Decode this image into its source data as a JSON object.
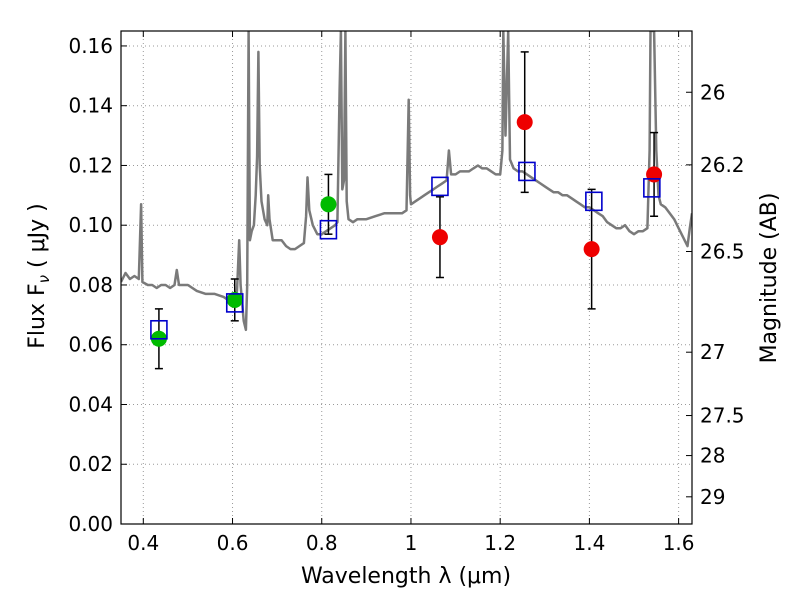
{
  "chart_data": {
    "type": "scatter",
    "xlabel": "Wavelength  λ (μm)",
    "ylabel": "Flux  F",
    "ylabel_sub": "ν",
    "ylabel_unit": "  ( μJy )",
    "ylabel_right": "Magnitude (AB)",
    "xlim": [
      0.35,
      1.63
    ],
    "ylim": [
      0.0,
      0.165
    ],
    "grid": true,
    "x_ticks": [
      0.4,
      0.6,
      0.8,
      1.0,
      1.2,
      1.4,
      1.6
    ],
    "x_tick_labels": [
      "0.4",
      "0.6",
      "0.8",
      "1",
      "1.2",
      "1.4",
      "1.6"
    ],
    "y_ticks": [
      0.0,
      0.02,
      0.04,
      0.06,
      0.08,
      0.1,
      0.12,
      0.14,
      0.16
    ],
    "y_tick_labels": [
      "0.00",
      "0.02",
      "0.04",
      "0.06",
      "0.08",
      "0.10",
      "0.12",
      "0.14",
      "0.16"
    ],
    "right_ticks": [
      {
        "label": "26",
        "flux": 0.1445
      },
      {
        "label": "26.2",
        "flux": 0.1202
      },
      {
        "label": "26.5",
        "flux": 0.0912
      },
      {
        "label": "27",
        "flux": 0.0575
      },
      {
        "label": "27.5",
        "flux": 0.0363
      },
      {
        "label": "28",
        "flux": 0.0229
      },
      {
        "label": "29",
        "flux": 0.0091
      }
    ],
    "colors": {
      "model": "#7a7a7a",
      "green": "#00bb00",
      "red": "#ee0000",
      "square": "#0000cc",
      "errbar": "#000000",
      "grid": "#9a9a9a"
    },
    "model_spectrum": [
      [
        0.35,
        0.081
      ],
      [
        0.36,
        0.084
      ],
      [
        0.37,
        0.082
      ],
      [
        0.38,
        0.083
      ],
      [
        0.39,
        0.082
      ],
      [
        0.395,
        0.107
      ],
      [
        0.398,
        0.081
      ],
      [
        0.41,
        0.08
      ],
      [
        0.42,
        0.08
      ],
      [
        0.43,
        0.079
      ],
      [
        0.44,
        0.08
      ],
      [
        0.45,
        0.08
      ],
      [
        0.46,
        0.079
      ],
      [
        0.47,
        0.08
      ],
      [
        0.475,
        0.085
      ],
      [
        0.48,
        0.08
      ],
      [
        0.5,
        0.08
      ],
      [
        0.52,
        0.078
      ],
      [
        0.54,
        0.077
      ],
      [
        0.56,
        0.077
      ],
      [
        0.58,
        0.076
      ],
      [
        0.59,
        0.075
      ],
      [
        0.6,
        0.075
      ],
      [
        0.61,
        0.078
      ],
      [
        0.615,
        0.095
      ],
      [
        0.618,
        0.08
      ],
      [
        0.625,
        0.068
      ],
      [
        0.63,
        0.065
      ],
      [
        0.633,
        0.08
      ],
      [
        0.636,
        0.165
      ],
      [
        0.639,
        0.095
      ],
      [
        0.643,
        0.098
      ],
      [
        0.648,
        0.1
      ],
      [
        0.652,
        0.11
      ],
      [
        0.655,
        0.123
      ],
      [
        0.658,
        0.158
      ],
      [
        0.661,
        0.12
      ],
      [
        0.665,
        0.108
      ],
      [
        0.672,
        0.102
      ],
      [
        0.678,
        0.1
      ],
      [
        0.68,
        0.11
      ],
      [
        0.683,
        0.102
      ],
      [
        0.69,
        0.095
      ],
      [
        0.7,
        0.095
      ],
      [
        0.71,
        0.095
      ],
      [
        0.72,
        0.093
      ],
      [
        0.73,
        0.092
      ],
      [
        0.74,
        0.092
      ],
      [
        0.75,
        0.093
      ],
      [
        0.76,
        0.094
      ],
      [
        0.765,
        0.103
      ],
      [
        0.768,
        0.116
      ],
      [
        0.772,
        0.105
      ],
      [
        0.78,
        0.1
      ],
      [
        0.79,
        0.097
      ],
      [
        0.8,
        0.097
      ],
      [
        0.81,
        0.098
      ],
      [
        0.82,
        0.099
      ],
      [
        0.83,
        0.1
      ],
      [
        0.835,
        0.101
      ],
      [
        0.84,
        0.145
      ],
      [
        0.843,
        0.165
      ],
      [
        0.846,
        0.112
      ],
      [
        0.85,
        0.115
      ],
      [
        0.853,
        0.165
      ],
      [
        0.856,
        0.108
      ],
      [
        0.86,
        0.102
      ],
      [
        0.87,
        0.101
      ],
      [
        0.88,
        0.102
      ],
      [
        0.9,
        0.102
      ],
      [
        0.92,
        0.103
      ],
      [
        0.94,
        0.104
      ],
      [
        0.96,
        0.104
      ],
      [
        0.98,
        0.104
      ],
      [
        0.99,
        0.105
      ],
      [
        0.995,
        0.142
      ],
      [
        0.998,
        0.11
      ],
      [
        1.0,
        0.107
      ],
      [
        1.01,
        0.108
      ],
      [
        1.02,
        0.109
      ],
      [
        1.03,
        0.11
      ],
      [
        1.04,
        0.111
      ],
      [
        1.05,
        0.112
      ],
      [
        1.06,
        0.113
      ],
      [
        1.07,
        0.114
      ],
      [
        1.08,
        0.115
      ],
      [
        1.085,
        0.125
      ],
      [
        1.09,
        0.117
      ],
      [
        1.1,
        0.117
      ],
      [
        1.11,
        0.118
      ],
      [
        1.12,
        0.118
      ],
      [
        1.13,
        0.118
      ],
      [
        1.14,
        0.119
      ],
      [
        1.15,
        0.12
      ],
      [
        1.16,
        0.119
      ],
      [
        1.17,
        0.119
      ],
      [
        1.18,
        0.118
      ],
      [
        1.19,
        0.117
      ],
      [
        1.2,
        0.117
      ],
      [
        1.205,
        0.125
      ],
      [
        1.207,
        0.165
      ],
      [
        1.212,
        0.13
      ],
      [
        1.218,
        0.165
      ],
      [
        1.222,
        0.122
      ],
      [
        1.23,
        0.119
      ],
      [
        1.24,
        0.118
      ],
      [
        1.25,
        0.118
      ],
      [
        1.26,
        0.117
      ],
      [
        1.27,
        0.116
      ],
      [
        1.28,
        0.115
      ],
      [
        1.29,
        0.114
      ],
      [
        1.3,
        0.113
      ],
      [
        1.31,
        0.112
      ],
      [
        1.32,
        0.111
      ],
      [
        1.33,
        0.111
      ],
      [
        1.34,
        0.11
      ],
      [
        1.35,
        0.11
      ],
      [
        1.36,
        0.109
      ],
      [
        1.37,
        0.108
      ],
      [
        1.38,
        0.107
      ],
      [
        1.39,
        0.106
      ],
      [
        1.4,
        0.106
      ],
      [
        1.41,
        0.105
      ],
      [
        1.42,
        0.104
      ],
      [
        1.43,
        0.103
      ],
      [
        1.44,
        0.101
      ],
      [
        1.45,
        0.1
      ],
      [
        1.46,
        0.099
      ],
      [
        1.47,
        0.099
      ],
      [
        1.48,
        0.1
      ],
      [
        1.49,
        0.098
      ],
      [
        1.5,
        0.097
      ],
      [
        1.51,
        0.098
      ],
      [
        1.52,
        0.098
      ],
      [
        1.53,
        0.099
      ],
      [
        1.535,
        0.125
      ],
      [
        1.537,
        0.165
      ],
      [
        1.545,
        0.165
      ],
      [
        1.55,
        0.125
      ],
      [
        1.555,
        0.11
      ],
      [
        1.56,
        0.107
      ],
      [
        1.57,
        0.106
      ],
      [
        1.58,
        0.104
      ],
      [
        1.59,
        0.102
      ],
      [
        1.6,
        0.099
      ],
      [
        1.61,
        0.096
      ],
      [
        1.62,
        0.093
      ],
      [
        1.625,
        0.099
      ],
      [
        1.63,
        0.104
      ]
    ],
    "series": [
      {
        "marker": "circle",
        "color": "green",
        "points": [
          {
            "x": 0.435,
            "y": 0.062,
            "err": 0.01
          },
          {
            "x": 0.605,
            "y": 0.075,
            "err": 0.007
          },
          {
            "x": 0.815,
            "y": 0.107,
            "err": 0.01
          }
        ]
      },
      {
        "marker": "circle",
        "color": "red",
        "points": [
          {
            "x": 1.065,
            "y": 0.096,
            "err": 0.0135
          },
          {
            "x": 1.255,
            "y": 0.1345,
            "err": 0.0235
          },
          {
            "x": 1.405,
            "y": 0.092,
            "err": 0.02
          },
          {
            "x": 1.545,
            "y": 0.117,
            "err": 0.014
          }
        ]
      },
      {
        "marker": "open-square",
        "color": "square",
        "points": [
          {
            "x": 0.435,
            "y": 0.065
          },
          {
            "x": 0.605,
            "y": 0.074
          },
          {
            "x": 0.815,
            "y": 0.0985
          },
          {
            "x": 1.065,
            "y": 0.113
          },
          {
            "x": 1.26,
            "y": 0.118
          },
          {
            "x": 1.41,
            "y": 0.108
          },
          {
            "x": 1.54,
            "y": 0.1125
          }
        ]
      }
    ]
  }
}
